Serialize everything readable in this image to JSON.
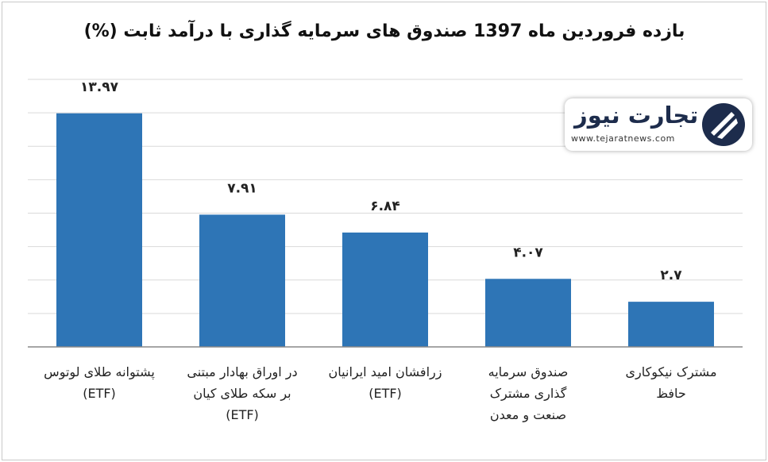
{
  "chart_data": {
    "type": "bar",
    "title": "بازده فروردین ماه 1397 صندوق های سرمایه گذاری  با درآمد ثابت (%)",
    "categories": [
      "پشتوانه طلای لوتوس\n(ETF)",
      "در اوراق بهادار مبتنی\nبر سکه طلای کیان\n(ETF)",
      "زرافشان امید ایرانیان\n(ETF)",
      "صندوق سرمایه\nگذاری مشترک\nصنعت و معدن",
      "مشترک نیکوکاری\nحافظ"
    ],
    "values": [
      13.97,
      7.91,
      6.84,
      4.07,
      2.7
    ],
    "value_labels": [
      "۱۳.۹۷",
      "۷.۹۱",
      "۶.۸۴",
      "۴.۰۷",
      "۲.۷"
    ],
    "color": "#2e75b6",
    "ylim": [
      0,
      16
    ],
    "yticks": [
      0,
      2,
      4,
      6,
      8,
      10,
      12,
      14,
      16
    ],
    "grid": true
  },
  "watermark": {
    "name": "تجارت نیوز",
    "url": "www.tejaratnews.com"
  }
}
